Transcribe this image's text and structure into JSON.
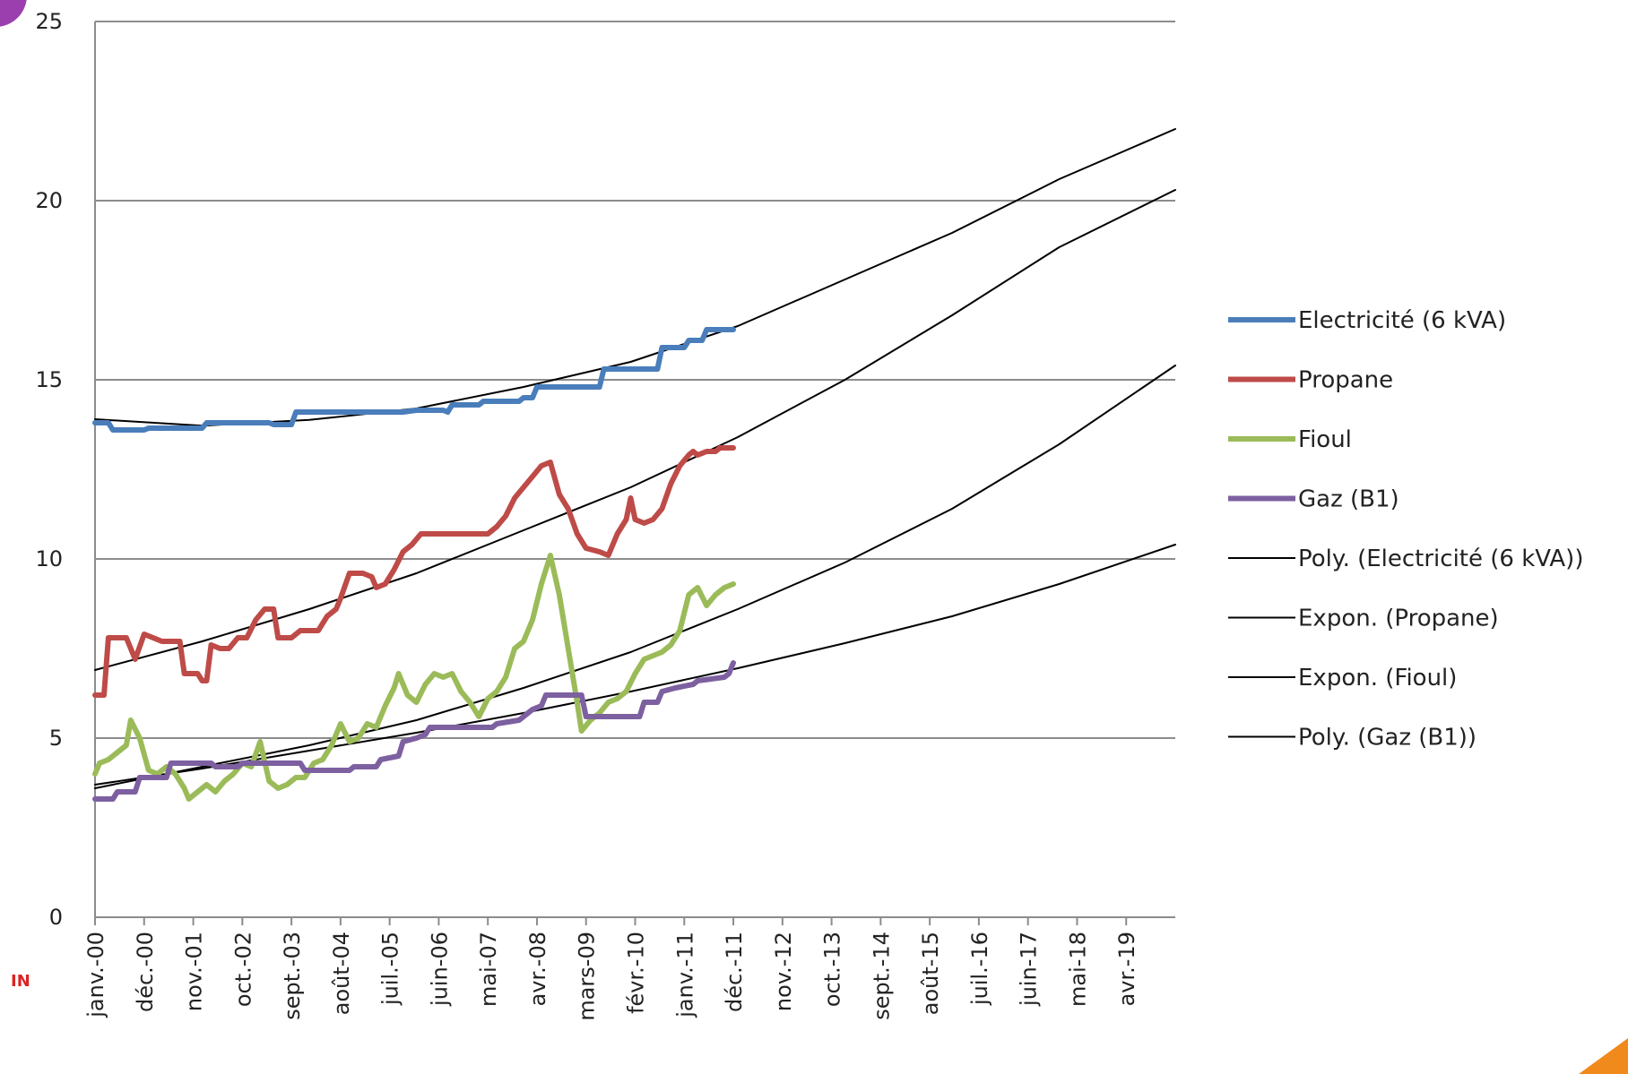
{
  "chart_data": {
    "type": "line",
    "title": "",
    "xlabel": "",
    "ylabel": "",
    "ylim": [
      0,
      25
    ],
    "yticks": [
      0,
      5,
      10,
      15,
      20,
      25
    ],
    "xlim": [
      "janv.-00",
      "mars-20"
    ],
    "xticks": [
      "janv.-00",
      "déc.-00",
      "nov.-01",
      "oct.-02",
      "sept.-03",
      "août-04",
      "juil.-05",
      "juin-06",
      "mai-07",
      "avr.-08",
      "mars-09",
      "févr.-10",
      "janv.-11",
      "déc.-11",
      "nov.-12",
      "oct.-13",
      "sept.-14",
      "août-15",
      "juil.-16",
      "juin-17",
      "mai-18",
      "avr.-19"
    ],
    "grid": "horizontal",
    "legend_position": "right",
    "series": [
      {
        "name": "Electricité (6 kVA)",
        "color": "#4a7ebb",
        "style": "thick",
        "points": [
          [
            "janv.-00",
            13.8
          ],
          [
            "avr.-00",
            13.8
          ],
          [
            "mai-00",
            13.6
          ],
          [
            "déc.-00",
            13.6
          ],
          [
            "janv.-01",
            13.65
          ],
          [
            "janv.-02",
            13.65
          ],
          [
            "févr.-02",
            13.8
          ],
          [
            "avr.-03",
            13.8
          ],
          [
            "mai-03",
            13.75
          ],
          [
            "sept.-03",
            13.75
          ],
          [
            "oct.-03",
            14.1
          ],
          [
            "oct.-05",
            14.1
          ],
          [
            "janv.-06",
            14.15
          ],
          [
            "juil.-06",
            14.15
          ],
          [
            "août-06",
            14.1
          ],
          [
            "sept.-06",
            14.3
          ],
          [
            "mars-07",
            14.3
          ],
          [
            "avr.-07",
            14.4
          ],
          [
            "déc.-07",
            14.4
          ],
          [
            "janv.-08",
            14.5
          ],
          [
            "mars-08",
            14.5
          ],
          [
            "avr.-08",
            14.8
          ],
          [
            "juin-09",
            14.8
          ],
          [
            "juil.-09",
            15.3
          ],
          [
            "juil.-10",
            15.3
          ],
          [
            "août-10",
            15.9
          ],
          [
            "janv.-11",
            15.9
          ],
          [
            "févr.-11",
            16.1
          ],
          [
            "mai-11",
            16.1
          ],
          [
            "juin-11",
            16.4
          ],
          [
            "déc.-11",
            16.4
          ]
        ]
      },
      {
        "name": "Propane",
        "color": "#be4b48",
        "style": "thick",
        "points": [
          [
            "janv.-00",
            6.2
          ],
          [
            "mars-00",
            6.2
          ],
          [
            "avr.-00",
            7.8
          ],
          [
            "août-00",
            7.8
          ],
          [
            "oct.-00",
            7.2
          ],
          [
            "déc.-00",
            7.9
          ],
          [
            "avr.-01",
            7.7
          ],
          [
            "août-01",
            7.7
          ],
          [
            "sept.-01",
            6.8
          ],
          [
            "déc.-01",
            6.8
          ],
          [
            "janv.-02",
            6.6
          ],
          [
            "févr.-02",
            6.6
          ],
          [
            "mars-02",
            7.6
          ],
          [
            "mai-02",
            7.5
          ],
          [
            "juil.-02",
            7.5
          ],
          [
            "sept.-02",
            7.8
          ],
          [
            "nov.-02",
            7.8
          ],
          [
            "janv.-03",
            8.3
          ],
          [
            "mars-03",
            8.6
          ],
          [
            "mai-03",
            8.6
          ],
          [
            "juin-03",
            7.8
          ],
          [
            "sept.-03",
            7.8
          ],
          [
            "nov.-03",
            8.0
          ],
          [
            "mars-04",
            8.0
          ],
          [
            "mai-04",
            8.4
          ],
          [
            "juil.-04",
            8.6
          ],
          [
            "août-04",
            8.9
          ],
          [
            "oct.-04",
            9.6
          ],
          [
            "janv.-05",
            9.6
          ],
          [
            "mars-05",
            9.5
          ],
          [
            "avr.-05",
            9.2
          ],
          [
            "juin-05",
            9.3
          ],
          [
            "août-05",
            9.7
          ],
          [
            "oct.-05",
            10.2
          ],
          [
            "déc.-05",
            10.4
          ],
          [
            "févr.-06",
            10.7
          ],
          [
            "mai-07",
            10.7
          ],
          [
            "juil.-07",
            10.9
          ],
          [
            "sept.-07",
            11.2
          ],
          [
            "nov.-07",
            11.7
          ],
          [
            "janv.-08",
            12.0
          ],
          [
            "mars-08",
            12.3
          ],
          [
            "mai-08",
            12.6
          ],
          [
            "juil.-08",
            12.7
          ],
          [
            "sept.-08",
            11.8
          ],
          [
            "nov.-08",
            11.4
          ],
          [
            "janv.-09",
            10.7
          ],
          [
            "mars-09",
            10.3
          ],
          [
            "juin-09",
            10.2
          ],
          [
            "août-09",
            10.1
          ],
          [
            "oct.-09",
            10.7
          ],
          [
            "déc.-09",
            11.1
          ],
          [
            "janv.-10",
            11.7
          ],
          [
            "févr.-10",
            11.1
          ],
          [
            "avr.-10",
            11.0
          ],
          [
            "juin-10",
            11.1
          ],
          [
            "août-10",
            11.4
          ],
          [
            "oct.-10",
            12.1
          ],
          [
            "déc.-10",
            12.6
          ],
          [
            "févr.-11",
            12.9
          ],
          [
            "mars-11",
            13.0
          ],
          [
            "avr.-11",
            12.9
          ],
          [
            "juin-11",
            13.0
          ],
          [
            "août-11",
            13.0
          ],
          [
            "sept.-11",
            13.1
          ],
          [
            "déc.-11",
            13.1
          ]
        ]
      },
      {
        "name": "Fioul",
        "color": "#9bbb59",
        "style": "thick",
        "points": [
          [
            "janv.-00",
            4.0
          ],
          [
            "févr.-00",
            4.3
          ],
          [
            "avr.-00",
            4.4
          ],
          [
            "juin-00",
            4.6
          ],
          [
            "août-00",
            4.8
          ],
          [
            "sept.-00",
            5.5
          ],
          [
            "nov.-00",
            5.0
          ],
          [
            "janv.-01",
            4.1
          ],
          [
            "mars-01",
            4.0
          ],
          [
            "mai-01",
            4.2
          ],
          [
            "juil.-01",
            4.0
          ],
          [
            "sept.-01",
            3.6
          ],
          [
            "oct.-01",
            3.3
          ],
          [
            "déc.-01",
            3.5
          ],
          [
            "févr.-02",
            3.7
          ],
          [
            "avr.-02",
            3.5
          ],
          [
            "juin-02",
            3.8
          ],
          [
            "août-02",
            4.0
          ],
          [
            "oct.-02",
            4.3
          ],
          [
            "déc.-02",
            4.2
          ],
          [
            "févr.-03",
            4.9
          ],
          [
            "avr.-03",
            3.8
          ],
          [
            "juin-03",
            3.6
          ],
          [
            "août-03",
            3.7
          ],
          [
            "oct.-03",
            3.9
          ],
          [
            "déc.-03",
            3.9
          ],
          [
            "févr.-04",
            4.3
          ],
          [
            "avr.-04",
            4.4
          ],
          [
            "juin-04",
            4.8
          ],
          [
            "août-04",
            5.4
          ],
          [
            "oct.-04",
            4.9
          ],
          [
            "déc.-04",
            5.0
          ],
          [
            "févr.-05",
            5.4
          ],
          [
            "avr.-05",
            5.3
          ],
          [
            "juin-05",
            5.9
          ],
          [
            "août-05",
            6.4
          ],
          [
            "sept.-05",
            6.8
          ],
          [
            "nov.-05",
            6.2
          ],
          [
            "janv.-06",
            6.0
          ],
          [
            "mars-06",
            6.5
          ],
          [
            "mai-06",
            6.8
          ],
          [
            "juil.-06",
            6.7
          ],
          [
            "sept.-06",
            6.8
          ],
          [
            "nov.-06",
            6.3
          ],
          [
            "janv.-07",
            6.0
          ],
          [
            "mars-07",
            5.6
          ],
          [
            "mai-07",
            6.1
          ],
          [
            "juil.-07",
            6.3
          ],
          [
            "sept.-07",
            6.7
          ],
          [
            "nov.-07",
            7.5
          ],
          [
            "janv.-08",
            7.7
          ],
          [
            "mars-08",
            8.3
          ],
          [
            "mai-08",
            9.3
          ],
          [
            "juil.-08",
            10.1
          ],
          [
            "sept.-08",
            9.0
          ],
          [
            "nov.-08",
            7.5
          ],
          [
            "janv.-09",
            6.0
          ],
          [
            "févr.-09",
            5.2
          ],
          [
            "avr.-09",
            5.5
          ],
          [
            "juin-09",
            5.7
          ],
          [
            "août-09",
            6.0
          ],
          [
            "oct.-09",
            6.1
          ],
          [
            "déc.-09",
            6.3
          ],
          [
            "févr.-10",
            6.8
          ],
          [
            "avr.-10",
            7.2
          ],
          [
            "juin-10",
            7.3
          ],
          [
            "août-10",
            7.4
          ],
          [
            "oct.-10",
            7.6
          ],
          [
            "déc.-10",
            8.0
          ],
          [
            "févr.-11",
            9.0
          ],
          [
            "avr.-11",
            9.2
          ],
          [
            "juin-11",
            8.7
          ],
          [
            "août-11",
            9.0
          ],
          [
            "oct.-11",
            9.2
          ],
          [
            "déc.-11",
            9.3
          ]
        ]
      },
      {
        "name": "Gaz (B1)",
        "color": "#7d60a0",
        "style": "thick",
        "points": [
          [
            "janv.-00",
            3.3
          ],
          [
            "mai-00",
            3.3
          ],
          [
            "juin-00",
            3.5
          ],
          [
            "oct.-00",
            3.5
          ],
          [
            "nov.-00",
            3.9
          ],
          [
            "mai-01",
            3.9
          ],
          [
            "juin-01",
            4.3
          ],
          [
            "mars-02",
            4.3
          ],
          [
            "avr.-02",
            4.2
          ],
          [
            "sept.-02",
            4.2
          ],
          [
            "oct.-02",
            4.3
          ],
          [
            "nov.-03",
            4.3
          ],
          [
            "déc.-03",
            4.1
          ],
          [
            "oct.-04",
            4.1
          ],
          [
            "nov.-04",
            4.2
          ],
          [
            "avr.-05",
            4.2
          ],
          [
            "mai-05",
            4.4
          ],
          [
            "sept.-05",
            4.5
          ],
          [
            "oct.-05",
            4.9
          ],
          [
            "janv.-06",
            5.0
          ],
          [
            "mars-06",
            5.1
          ],
          [
            "avr.-06",
            5.3
          ],
          [
            "juin-07",
            5.3
          ],
          [
            "juil.-07",
            5.4
          ],
          [
            "déc.-07",
            5.5
          ],
          [
            "janv.-08",
            5.6
          ],
          [
            "mars-08",
            5.8
          ],
          [
            "mai-08",
            5.9
          ],
          [
            "juin-08",
            6.2
          ],
          [
            "févr.-09",
            6.2
          ],
          [
            "mars-09",
            5.6
          ],
          [
            "mars-10",
            5.6
          ],
          [
            "avr.-10",
            6.0
          ],
          [
            "juil.-10",
            6.0
          ],
          [
            "août-10",
            6.3
          ],
          [
            "nov.-10",
            6.4
          ],
          [
            "mars-11",
            6.5
          ],
          [
            "avr.-11",
            6.6
          ],
          [
            "oct.-11",
            6.7
          ],
          [
            "nov.-11",
            6.8
          ],
          [
            "déc.-11",
            7.1
          ]
        ]
      },
      {
        "name": "Poly. (Electricité (6 kVA))",
        "color": "#000000",
        "style": "thin",
        "points": [
          [
            "janv.-00",
            13.9
          ],
          [
            "janv.-02",
            13.72
          ],
          [
            "janv.-04",
            13.88
          ],
          [
            "janv.-06",
            14.2
          ],
          [
            "janv.-08",
            14.8
          ],
          [
            "janv.-10",
            15.5
          ],
          [
            "janv.-12",
            16.5
          ],
          [
            "janv.-14",
            17.8
          ],
          [
            "janv.-16",
            19.1
          ],
          [
            "janv.-18",
            20.6
          ],
          [
            "mars-20",
            22.0
          ]
        ]
      },
      {
        "name": "Expon. (Propane)",
        "color": "#000000",
        "style": "thin",
        "points": [
          [
            "janv.-00",
            6.9
          ],
          [
            "janv.-02",
            7.7
          ],
          [
            "janv.-04",
            8.6
          ],
          [
            "janv.-06",
            9.6
          ],
          [
            "janv.-08",
            10.8
          ],
          [
            "janv.-10",
            12.0
          ],
          [
            "janv.-12",
            13.4
          ],
          [
            "janv.-14",
            15.0
          ],
          [
            "janv.-16",
            16.8
          ],
          [
            "janv.-18",
            18.7
          ],
          [
            "mars-20",
            20.3
          ]
        ]
      },
      {
        "name": "Expon. (Fioul)",
        "color": "#000000",
        "style": "thin",
        "points": [
          [
            "janv.-00",
            3.6
          ],
          [
            "janv.-02",
            4.2
          ],
          [
            "janv.-04",
            4.8
          ],
          [
            "janv.-06",
            5.5
          ],
          [
            "janv.-08",
            6.4
          ],
          [
            "janv.-10",
            7.4
          ],
          [
            "janv.-12",
            8.6
          ],
          [
            "janv.-14",
            9.9
          ],
          [
            "janv.-16",
            11.4
          ],
          [
            "janv.-18",
            13.2
          ],
          [
            "mars-20",
            15.4
          ]
        ]
      },
      {
        "name": "Poly. (Gaz (B1))",
        "color": "#000000",
        "style": "thin",
        "points": [
          [
            "janv.-00",
            3.7
          ],
          [
            "janv.-02",
            4.15
          ],
          [
            "janv.-04",
            4.65
          ],
          [
            "janv.-06",
            5.15
          ],
          [
            "janv.-08",
            5.7
          ],
          [
            "janv.-10",
            6.3
          ],
          [
            "janv.-12",
            6.95
          ],
          [
            "janv.-14",
            7.65
          ],
          [
            "janv.-16",
            8.4
          ],
          [
            "janv.-18",
            9.3
          ],
          [
            "mars-20",
            10.4
          ]
        ]
      }
    ]
  },
  "decor": {
    "corner_blob_color": "#9b3fae",
    "corner_wedge_color": "#f08a1c",
    "left_logo_text": "IN"
  }
}
